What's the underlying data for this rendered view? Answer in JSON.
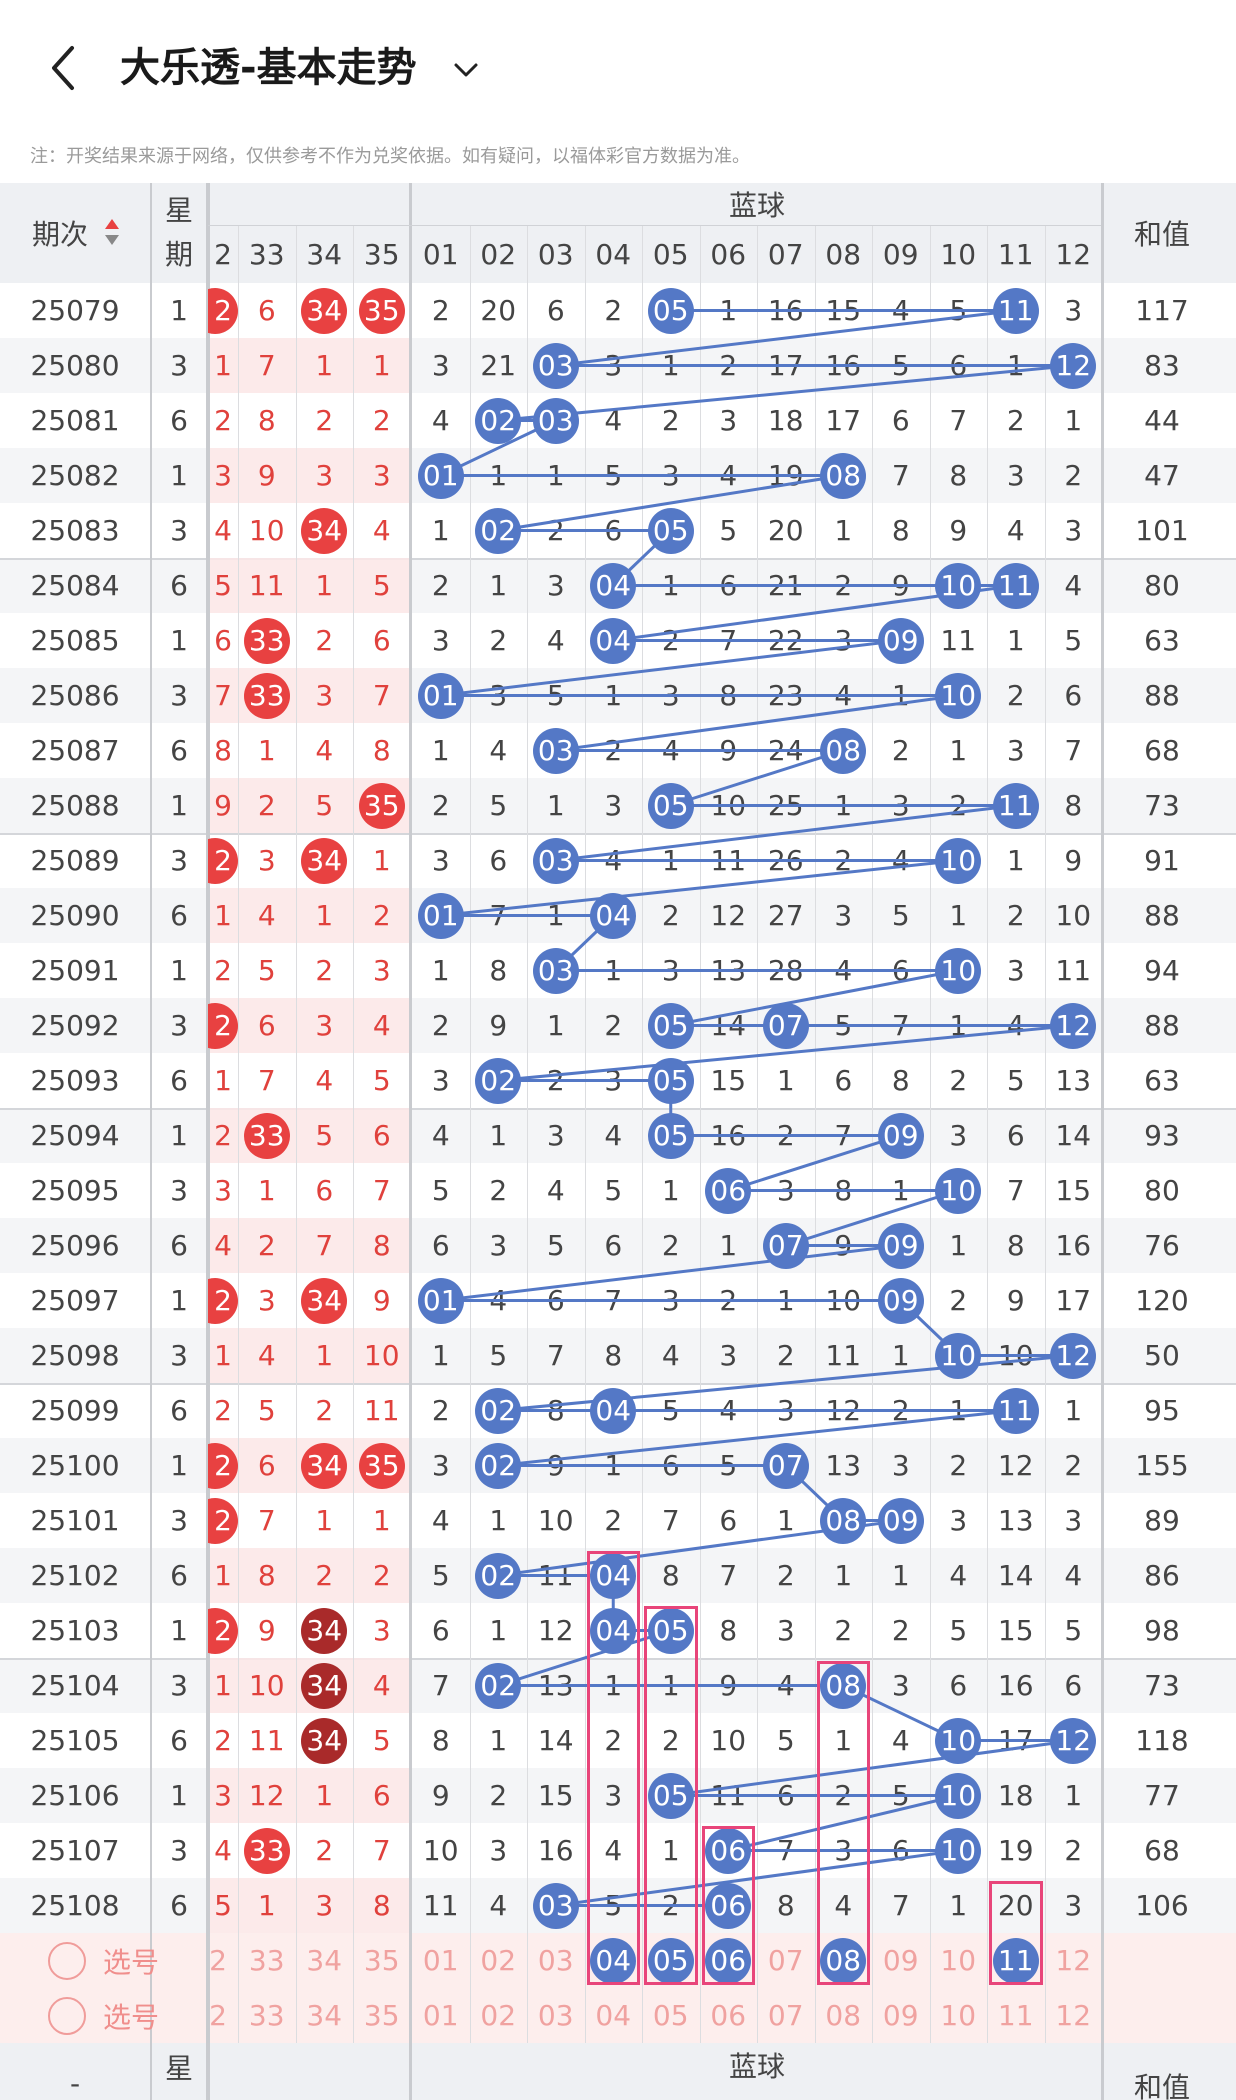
{
  "header": {
    "title": "大乐透-基本走势",
    "back_icon": "chevron-left-icon",
    "dropdown_icon": "chevron-down-icon"
  },
  "notice": "注：开奖结果来源于网络，仅供参考不作为兑奖依据。如有疑问，以福体彩官方数据为准。",
  "table": {
    "col_period": "期次",
    "col_weekday_line1": "星",
    "col_weekday_line2": "期",
    "sort_icon": "sort-up-down-icon",
    "front_partial_label": "2",
    "front_columns": [
      "33",
      "34",
      "35"
    ],
    "blue_group_label": "蓝球",
    "blue_columns": [
      "01",
      "02",
      "03",
      "04",
      "05",
      "06",
      "07",
      "08",
      "09",
      "10",
      "11",
      "12"
    ],
    "col_sum": "和值",
    "bottom_period_label": "-",
    "rows": [
      {
        "period": "25079",
        "weekday": "1",
        "fp": "2",
        "front": [
          "6",
          "34",
          "35"
        ],
        "blue": [
          "2",
          "20",
          "6",
          "2",
          "05",
          "1",
          "16",
          "15",
          "4",
          "5",
          "11",
          "3"
        ],
        "sum": "117"
      },
      {
        "period": "25080",
        "weekday": "3",
        "fp": "1",
        "front": [
          "7",
          "1",
          "1"
        ],
        "blue": [
          "3",
          "21",
          "03",
          "3",
          "1",
          "2",
          "17",
          "16",
          "5",
          "6",
          "1",
          "12"
        ],
        "sum": "83"
      },
      {
        "period": "25081",
        "weekday": "6",
        "fp": "2",
        "front": [
          "8",
          "2",
          "2"
        ],
        "blue": [
          "4",
          "02",
          "03",
          "4",
          "2",
          "3",
          "18",
          "17",
          "6",
          "7",
          "2",
          "1"
        ],
        "sum": "44"
      },
      {
        "period": "25082",
        "weekday": "1",
        "fp": "3",
        "front": [
          "9",
          "3",
          "3"
        ],
        "blue": [
          "01",
          "1",
          "1",
          "5",
          "3",
          "4",
          "19",
          "08",
          "7",
          "8",
          "3",
          "2"
        ],
        "sum": "47"
      },
      {
        "period": "25083",
        "weekday": "3",
        "fp": "4",
        "front": [
          "10",
          "34",
          "4"
        ],
        "blue": [
          "1",
          "02",
          "2",
          "6",
          "05",
          "5",
          "20",
          "1",
          "8",
          "9",
          "4",
          "3"
        ],
        "sum": "101"
      },
      {
        "period": "25084",
        "weekday": "6",
        "fp": "5",
        "front": [
          "11",
          "1",
          "5"
        ],
        "blue": [
          "2",
          "1",
          "3",
          "04",
          "1",
          "6",
          "21",
          "2",
          "9",
          "10",
          "11",
          "4"
        ],
        "sum": "80"
      },
      {
        "period": "25085",
        "weekday": "1",
        "fp": "6",
        "front": [
          "33",
          "2",
          "6"
        ],
        "blue": [
          "3",
          "2",
          "4",
          "04",
          "2",
          "7",
          "22",
          "3",
          "09",
          "11",
          "1",
          "5"
        ],
        "sum": "63"
      },
      {
        "period": "25086",
        "weekday": "3",
        "fp": "7",
        "front": [
          "33",
          "3",
          "7"
        ],
        "blue": [
          "01",
          "3",
          "5",
          "1",
          "3",
          "8",
          "23",
          "4",
          "1",
          "10",
          "2",
          "6"
        ],
        "sum": "88"
      },
      {
        "period": "25087",
        "weekday": "6",
        "fp": "8",
        "front": [
          "1",
          "4",
          "8"
        ],
        "blue": [
          "1",
          "4",
          "03",
          "2",
          "4",
          "9",
          "24",
          "08",
          "2",
          "1",
          "3",
          "7"
        ],
        "sum": "68"
      },
      {
        "period": "25088",
        "weekday": "1",
        "fp": "9",
        "front": [
          "2",
          "5",
          "35"
        ],
        "blue": [
          "2",
          "5",
          "1",
          "3",
          "05",
          "10",
          "25",
          "1",
          "3",
          "2",
          "11",
          "8"
        ],
        "sum": "73"
      },
      {
        "period": "25089",
        "weekday": "3",
        "fp": "2",
        "front": [
          "3",
          "34",
          "1"
        ],
        "blue": [
          "3",
          "6",
          "03",
          "4",
          "1",
          "11",
          "26",
          "2",
          "4",
          "10",
          "1",
          "9"
        ],
        "sum": "91"
      },
      {
        "period": "25090",
        "weekday": "6",
        "fp": "1",
        "front": [
          "4",
          "1",
          "2"
        ],
        "blue": [
          "01",
          "7",
          "1",
          "04",
          "2",
          "12",
          "27",
          "3",
          "5",
          "1",
          "2",
          "10"
        ],
        "sum": "88"
      },
      {
        "period": "25091",
        "weekday": "1",
        "fp": "2",
        "front": [
          "5",
          "2",
          "3"
        ],
        "blue": [
          "1",
          "8",
          "03",
          "1",
          "3",
          "13",
          "28",
          "4",
          "6",
          "10",
          "3",
          "11"
        ],
        "sum": "94"
      },
      {
        "period": "25092",
        "weekday": "3",
        "fp": "2",
        "front": [
          "6",
          "3",
          "4"
        ],
        "blue": [
          "2",
          "9",
          "1",
          "2",
          "05",
          "14",
          "07",
          "5",
          "7",
          "1",
          "4",
          "12"
        ],
        "sum": "88"
      },
      {
        "period": "25093",
        "weekday": "6",
        "fp": "1",
        "front": [
          "7",
          "4",
          "5"
        ],
        "blue": [
          "3",
          "02",
          "2",
          "3",
          "05",
          "15",
          "1",
          "6",
          "8",
          "2",
          "5",
          "13"
        ],
        "sum": "63"
      },
      {
        "period": "25094",
        "weekday": "1",
        "fp": "2",
        "front": [
          "33",
          "5",
          "6"
        ],
        "blue": [
          "4",
          "1",
          "3",
          "4",
          "05",
          "16",
          "2",
          "7",
          "09",
          "3",
          "6",
          "14"
        ],
        "sum": "93"
      },
      {
        "period": "25095",
        "weekday": "3",
        "fp": "3",
        "front": [
          "1",
          "6",
          "7"
        ],
        "blue": [
          "5",
          "2",
          "4",
          "5",
          "1",
          "06",
          "3",
          "8",
          "1",
          "10",
          "7",
          "15"
        ],
        "sum": "80"
      },
      {
        "period": "25096",
        "weekday": "6",
        "fp": "4",
        "front": [
          "2",
          "7",
          "8"
        ],
        "blue": [
          "6",
          "3",
          "5",
          "6",
          "2",
          "1",
          "07",
          "9",
          "09",
          "1",
          "8",
          "16"
        ],
        "sum": "76"
      },
      {
        "period": "25097",
        "weekday": "1",
        "fp": "2",
        "front": [
          "3",
          "34",
          "9"
        ],
        "blue": [
          "01",
          "4",
          "6",
          "7",
          "3",
          "2",
          "1",
          "10",
          "09",
          "2",
          "9",
          "17"
        ],
        "sum": "120"
      },
      {
        "period": "25098",
        "weekday": "3",
        "fp": "1",
        "front": [
          "4",
          "1",
          "10"
        ],
        "blue": [
          "1",
          "5",
          "7",
          "8",
          "4",
          "3",
          "2",
          "11",
          "1",
          "10",
          "10",
          "12"
        ],
        "sum": "50"
      },
      {
        "period": "25099",
        "weekday": "6",
        "fp": "2",
        "front": [
          "5",
          "2",
          "11"
        ],
        "blue": [
          "2",
          "02",
          "8",
          "04",
          "5",
          "4",
          "3",
          "12",
          "2",
          "1",
          "11",
          "1"
        ],
        "sum": "95"
      },
      {
        "period": "25100",
        "weekday": "1",
        "fp": "2",
        "front": [
          "6",
          "34",
          "35"
        ],
        "blue": [
          "3",
          "02",
          "9",
          "1",
          "6",
          "5",
          "07",
          "13",
          "3",
          "2",
          "12",
          "2"
        ],
        "sum": "155"
      },
      {
        "period": "25101",
        "weekday": "3",
        "fp": "2",
        "front": [
          "7",
          "1",
          "1"
        ],
        "blue": [
          "4",
          "1",
          "10",
          "2",
          "7",
          "6",
          "1",
          "08",
          "09",
          "3",
          "13",
          "3"
        ],
        "sum": "89"
      },
      {
        "period": "25102",
        "weekday": "6",
        "fp": "1",
        "front": [
          "8",
          "2",
          "2"
        ],
        "blue": [
          "5",
          "02",
          "11",
          "04",
          "8",
          "7",
          "2",
          "1",
          "1",
          "4",
          "14",
          "4"
        ],
        "sum": "86"
      },
      {
        "period": "25103",
        "weekday": "1",
        "fp": "2",
        "front": [
          "9",
          "34",
          "3"
        ],
        "blue": [
          "6",
          "1",
          "12",
          "04",
          "05",
          "8",
          "3",
          "2",
          "2",
          "5",
          "15",
          "5"
        ],
        "sum": "98"
      },
      {
        "period": "25104",
        "weekday": "3",
        "fp": "1",
        "front": [
          "10",
          "34",
          "4"
        ],
        "blue": [
          "7",
          "02",
          "13",
          "1",
          "1",
          "9",
          "4",
          "08",
          "3",
          "6",
          "16",
          "6"
        ],
        "sum": "73"
      },
      {
        "period": "25105",
        "weekday": "6",
        "fp": "2",
        "front": [
          "11",
          "34",
          "5"
        ],
        "blue": [
          "8",
          "1",
          "14",
          "2",
          "2",
          "10",
          "5",
          "1",
          "4",
          "10",
          "17",
          "12"
        ],
        "sum": "118"
      },
      {
        "period": "25106",
        "weekday": "1",
        "fp": "3",
        "front": [
          "12",
          "1",
          "6"
        ],
        "blue": [
          "9",
          "2",
          "15",
          "3",
          "05",
          "11",
          "6",
          "2",
          "5",
          "10",
          "18",
          "1"
        ],
        "sum": "77"
      },
      {
        "period": "25107",
        "weekday": "3",
        "fp": "4",
        "front": [
          "33",
          "2",
          "7"
        ],
        "blue": [
          "10",
          "3",
          "16",
          "4",
          "1",
          "06",
          "7",
          "3",
          "6",
          "10",
          "19",
          "2"
        ],
        "sum": "68"
      },
      {
        "period": "25108",
        "weekday": "6",
        "fp": "5",
        "front": [
          "1",
          "3",
          "8"
        ],
        "blue": [
          "11",
          "4",
          "03",
          "5",
          "2",
          "06",
          "8",
          "4",
          "7",
          "1",
          "20",
          "3"
        ],
        "sum": "106"
      }
    ],
    "pick_rows": [
      {
        "label": "选号",
        "fp": "2",
        "front": [
          "33",
          "34",
          "35"
        ],
        "blue": [
          "01",
          "02",
          "03",
          "04",
          "05",
          "06",
          "07",
          "08",
          "09",
          "10",
          "11",
          "12"
        ]
      },
      {
        "label": "选号",
        "fp": "2",
        "front": [
          "33",
          "34",
          "35"
        ],
        "blue": [
          "01",
          "02",
          "03",
          "04",
          "05",
          "06",
          "07",
          "08",
          "09",
          "10",
          "11",
          "12"
        ]
      }
    ]
  },
  "colors": {
    "blue_ball": "#5478c6",
    "red_ball": "#e84141",
    "dark_red_ball": "#a92a2a",
    "highlight_box": "#e8457a",
    "miss_red_text": "#e0413c"
  }
}
